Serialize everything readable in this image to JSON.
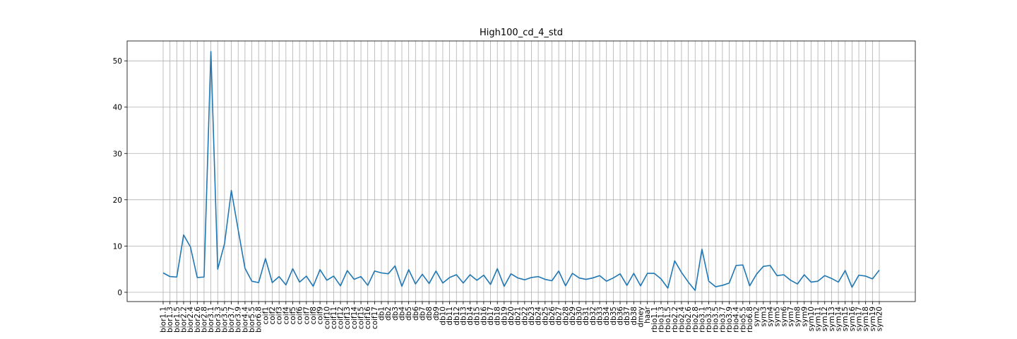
{
  "chart_data": {
    "type": "line",
    "title": "High100_cd_4_std",
    "xlabel": "",
    "ylabel": "",
    "ylim": [
      -2,
      54.3
    ],
    "yticks": [
      0,
      10,
      20,
      30,
      40,
      50
    ],
    "grid": true,
    "line_color": "#1f77b4",
    "categories": [
      "bior1.1",
      "bior1.3",
      "bior1.5",
      "bior2.2",
      "bior2.4",
      "bior2.6",
      "bior2.8",
      "bior3.1",
      "bior3.3",
      "bior3.5",
      "bior3.7",
      "bior3.9",
      "bior4.4",
      "bior5.5",
      "bior6.8",
      "coif1",
      "coif2",
      "coif3",
      "coif4",
      "coif5",
      "coif6",
      "coif7",
      "coif8",
      "coif9",
      "coif10",
      "coif11",
      "coif12",
      "coif13",
      "coif14",
      "coif15",
      "coif16",
      "coif17",
      "db1",
      "db2",
      "db3",
      "db4",
      "db5",
      "db6",
      "db7",
      "db8",
      "db9",
      "db10",
      "db11",
      "db12",
      "db13",
      "db14",
      "db15",
      "db16",
      "db17",
      "db18",
      "db19",
      "db20",
      "db21",
      "db22",
      "db23",
      "db24",
      "db25",
      "db26",
      "db27",
      "db28",
      "db29",
      "db30",
      "db31",
      "db32",
      "db33",
      "db34",
      "db35",
      "db36",
      "db37",
      "db38",
      "dmey",
      "haar",
      "rbio1.1",
      "rbio1.3",
      "rbio1.5",
      "rbio2.2",
      "rbio2.4",
      "rbio2.6",
      "rbio2.8",
      "rbio3.1",
      "rbio3.3",
      "rbio3.5",
      "rbio3.7",
      "rbio3.9",
      "rbio4.4",
      "rbio5.5",
      "rbio6.8",
      "sym2",
      "sym3",
      "sym4",
      "sym5",
      "sym6",
      "sym7",
      "sym8",
      "sym9",
      "sym10",
      "sym11",
      "sym12",
      "sym13",
      "sym14",
      "sym15",
      "sym16",
      "sym17",
      "sym18",
      "sym19",
      "sym20"
    ],
    "series": [
      {
        "values": [
          4.2,
          3.4,
          3.3,
          12.4,
          9.8,
          3.2,
          3.3,
          52.0,
          5.0,
          10.5,
          22.0,
          13.5,
          5.2,
          2.4,
          2.1,
          7.3,
          2.1,
          3.4,
          1.6,
          5.1,
          2.2,
          3.5,
          1.3,
          4.9,
          2.6,
          3.5,
          1.4,
          4.7,
          2.8,
          3.4,
          1.5,
          4.6,
          4.2,
          4.0,
          5.7,
          1.3,
          4.9,
          1.8,
          3.9,
          1.9,
          4.6,
          2.0,
          3.2,
          3.8,
          2.0,
          3.8,
          2.6,
          3.7,
          1.7,
          5.1,
          1.3,
          4.0,
          3.1,
          2.7,
          3.2,
          3.4,
          2.8,
          2.5,
          4.6,
          1.4,
          4.1,
          3.1,
          2.8,
          3.1,
          3.6,
          2.4,
          3.1,
          4.0,
          1.5,
          4.1,
          1.4,
          4.1,
          4.1,
          2.9,
          0.9,
          6.8,
          4.3,
          2.2,
          0.4,
          9.3,
          2.4,
          1.2,
          1.5,
          2.0,
          5.8,
          5.9,
          1.4,
          3.9,
          5.6,
          5.8,
          3.6,
          3.8,
          2.6,
          1.8,
          3.8,
          2.2,
          2.4,
          3.6,
          3.0,
          2.2,
          4.7,
          1.1,
          3.7,
          3.5,
          2.9,
          4.8
        ]
      }
    ]
  }
}
